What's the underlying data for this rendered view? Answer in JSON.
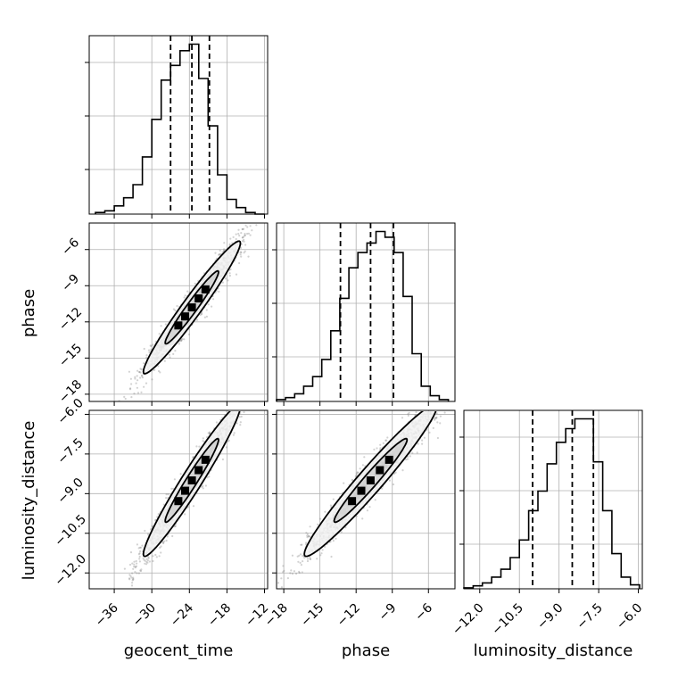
{
  "chart_data": {
    "type": "corner",
    "parameters": [
      "geocent_time",
      "phase",
      "luminosity_distance"
    ],
    "ranges": {
      "geocent_time": [
        -40,
        -11.5
      ],
      "phase": [
        -18.6,
        -3.8
      ],
      "luminosity_distance": [
        -12.6,
        -5.85
      ]
    },
    "ticks": {
      "geocent_time": [
        -36,
        -30,
        -24,
        -18,
        -12
      ],
      "phase": [
        -18,
        -15,
        -12,
        -9,
        -6
      ],
      "luminosity_distance": [
        -12.0,
        -10.5,
        -9.0,
        -7.5,
        -6.0
      ]
    },
    "tick_labels": {
      "geocent_time": [
        "−36",
        "−30",
        "−24",
        "−18",
        "−12"
      ],
      "phase": [
        "−18",
        "−15",
        "−12",
        "−9",
        "−6"
      ],
      "luminosity_distance": [
        "−12.0",
        "−10.5",
        "−9.0",
        "−7.5",
        "−6.0"
      ]
    },
    "y_ticks": {
      "phase": [
        -6,
        -9,
        -12,
        -15,
        -18
      ],
      "luminosity_distance": [
        -6.0,
        -7.5,
        -9.0,
        -10.5,
        -12.0
      ]
    },
    "y_tick_labels": {
      "phase": [
        "−6",
        "−9",
        "−12",
        "−15",
        "−18"
      ],
      "luminosity_distance": [
        "−6.0",
        "−7.5",
        "−9.0",
        "−10.5",
        "−12.0"
      ]
    },
    "quantiles": {
      "geocent_time": [
        -27.0,
        -23.6,
        -20.8
      ],
      "phase": [
        -13.3,
        -10.8,
        -8.9
      ],
      "luminosity_distance": [
        -10.0,
        -8.5,
        -7.7
      ]
    },
    "histograms": {
      "geocent_time": {
        "edges": [
          -39,
          -37.5,
          -36,
          -34.5,
          -33,
          -31.5,
          -30,
          -28.5,
          -27,
          -25.5,
          -24,
          -22.5,
          -21,
          -19.5,
          -18,
          -16.5,
          -15,
          -13.5,
          -12
        ],
        "counts": [
          1,
          2,
          5,
          10,
          18,
          35,
          58,
          82,
          91,
          100,
          104,
          83,
          54,
          24,
          9,
          4,
          1,
          0
        ]
      },
      "phase": {
        "edges": [
          -18.6,
          -17.85,
          -17.1,
          -16.35,
          -15.6,
          -14.85,
          -14.1,
          -13.35,
          -12.6,
          -11.85,
          -11.1,
          -10.35,
          -9.6,
          -8.85,
          -8.1,
          -7.35,
          -6.6,
          -5.85,
          -5.1,
          -4.35
        ],
        "counts": [
          1,
          2,
          4,
          8,
          13,
          22,
          37,
          54,
          70,
          78,
          83,
          89,
          86,
          78,
          55,
          25,
          8,
          3,
          1
        ]
      },
      "luminosity_distance": {
        "edges": [
          -12.6,
          -12.25,
          -11.9,
          -11.55,
          -11.2,
          -10.85,
          -10.5,
          -10.15,
          -9.8,
          -9.45,
          -9.1,
          -8.75,
          -8.4,
          -8.05,
          -7.7,
          -7.35,
          -7.0,
          -6.65,
          -6.3,
          -5.95
        ],
        "counts": [
          0.5,
          1.5,
          3,
          6,
          10,
          16,
          25,
          40,
          50,
          64,
          75,
          82,
          87,
          87,
          65,
          40,
          18,
          6,
          2
        ]
      }
    },
    "correlations": {
      "phase_vs_geocent_time": 0.97,
      "luminosity_distance_vs_geocent_time": 0.97,
      "luminosity_distance_vs_phase": 0.97
    },
    "line_color": "#000000",
    "sample_color": "#7f7f7f",
    "grid": true
  }
}
